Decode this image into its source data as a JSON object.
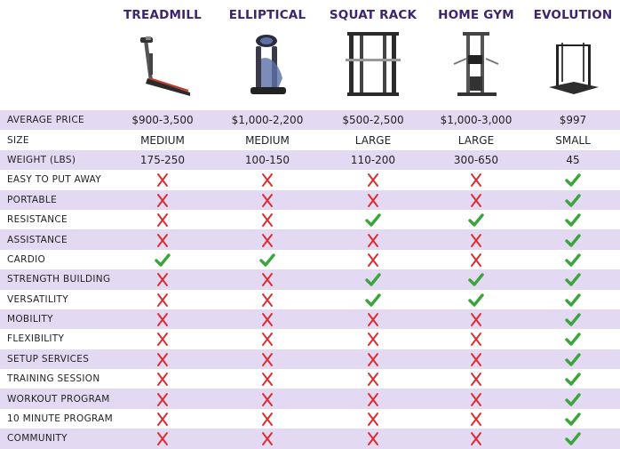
{
  "columns": [
    {
      "title": "TREADMILL",
      "image": "treadmill"
    },
    {
      "title": "ELLIPTICAL",
      "image": "elliptical"
    },
    {
      "title": "SQUAT RACK",
      "image": "squat-rack"
    },
    {
      "title": "HOME GYM",
      "image": "home-gym"
    },
    {
      "title": "EVOLUTION",
      "image": "evolution-platform"
    }
  ],
  "colors": {
    "title": "#3b2470",
    "shade": "#e3d9f2",
    "check": "#3aa53a",
    "cross": "#e0282c"
  },
  "rows": [
    {
      "label": "AVERAGE PRICE",
      "type": "text",
      "values": [
        "$900-3,500",
        "$1,000-2,200",
        "$500-2,500",
        "$1,000-3,000",
        "$997"
      ]
    },
    {
      "label": "SIZE",
      "type": "text",
      "values": [
        "MEDIUM",
        "MEDIUM",
        "LARGE",
        "LARGE",
        "SMALL"
      ]
    },
    {
      "label": "WEIGHT (LBS)",
      "type": "text",
      "values": [
        "175-250",
        "100-150",
        "110-200",
        "300-650",
        "45"
      ]
    },
    {
      "label": "EASY TO PUT AWAY",
      "type": "mark",
      "values": [
        "cross",
        "cross",
        "cross",
        "cross",
        "check"
      ]
    },
    {
      "label": "PORTABLE",
      "type": "mark",
      "values": [
        "cross",
        "cross",
        "cross",
        "cross",
        "check"
      ]
    },
    {
      "label": "RESISTANCE",
      "type": "mark",
      "values": [
        "cross",
        "cross",
        "check",
        "check",
        "check"
      ]
    },
    {
      "label": "ASSISTANCE",
      "type": "mark",
      "values": [
        "cross",
        "cross",
        "cross",
        "cross",
        "check"
      ]
    },
    {
      "label": "CARDIO",
      "type": "mark",
      "values": [
        "check",
        "check",
        "cross",
        "cross",
        "check"
      ]
    },
    {
      "label": "STRENGTH BUILDING",
      "type": "mark",
      "values": [
        "cross",
        "cross",
        "check",
        "check",
        "check"
      ]
    },
    {
      "label": "VERSATILITY",
      "type": "mark",
      "values": [
        "cross",
        "cross",
        "check",
        "check",
        "check"
      ]
    },
    {
      "label": "MOBILITY",
      "type": "mark",
      "values": [
        "cross",
        "cross",
        "cross",
        "cross",
        "check"
      ]
    },
    {
      "label": "FLEXIBILITY",
      "type": "mark",
      "values": [
        "cross",
        "cross",
        "cross",
        "cross",
        "check"
      ]
    },
    {
      "label": "SETUP SERVICES",
      "type": "mark",
      "values": [
        "cross",
        "cross",
        "cross",
        "cross",
        "check"
      ]
    },
    {
      "label": "TRAINING SESSION",
      "type": "mark",
      "values": [
        "cross",
        "cross",
        "cross",
        "cross",
        "check"
      ]
    },
    {
      "label": "WORKOUT PROGRAM",
      "type": "mark",
      "values": [
        "cross",
        "cross",
        "cross",
        "cross",
        "check"
      ]
    },
    {
      "label": "10 MINUTE PROGRAM",
      "type": "mark",
      "values": [
        "cross",
        "cross",
        "cross",
        "cross",
        "check"
      ]
    },
    {
      "label": "COMMUNITY",
      "type": "mark",
      "values": [
        "cross",
        "cross",
        "cross",
        "cross",
        "check"
      ]
    }
  ]
}
